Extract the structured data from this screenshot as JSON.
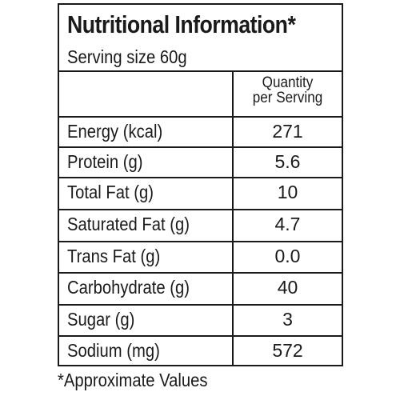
{
  "panel": {
    "title": "Nutritional Information*",
    "serving_size": "Serving size 60g",
    "column_header_line1": "Quantity",
    "column_header_line2": "per Serving",
    "rows": [
      {
        "label": "Energy (kcal)",
        "value": "271"
      },
      {
        "label": "Protein (g)",
        "value": "5.6"
      },
      {
        "label": "Total Fat (g)",
        "value": "10"
      },
      {
        "label": "Saturated Fat (g)",
        "value": "4.7"
      },
      {
        "label": "Trans Fat (g)",
        "value": "0.0"
      },
      {
        "label": "Carbohydrate (g)",
        "value": "40"
      },
      {
        "label": "Sugar (g)",
        "value": "3"
      },
      {
        "label": "Sodium (mg)",
        "value": "572"
      }
    ]
  },
  "footnote": "*Approximate Values"
}
